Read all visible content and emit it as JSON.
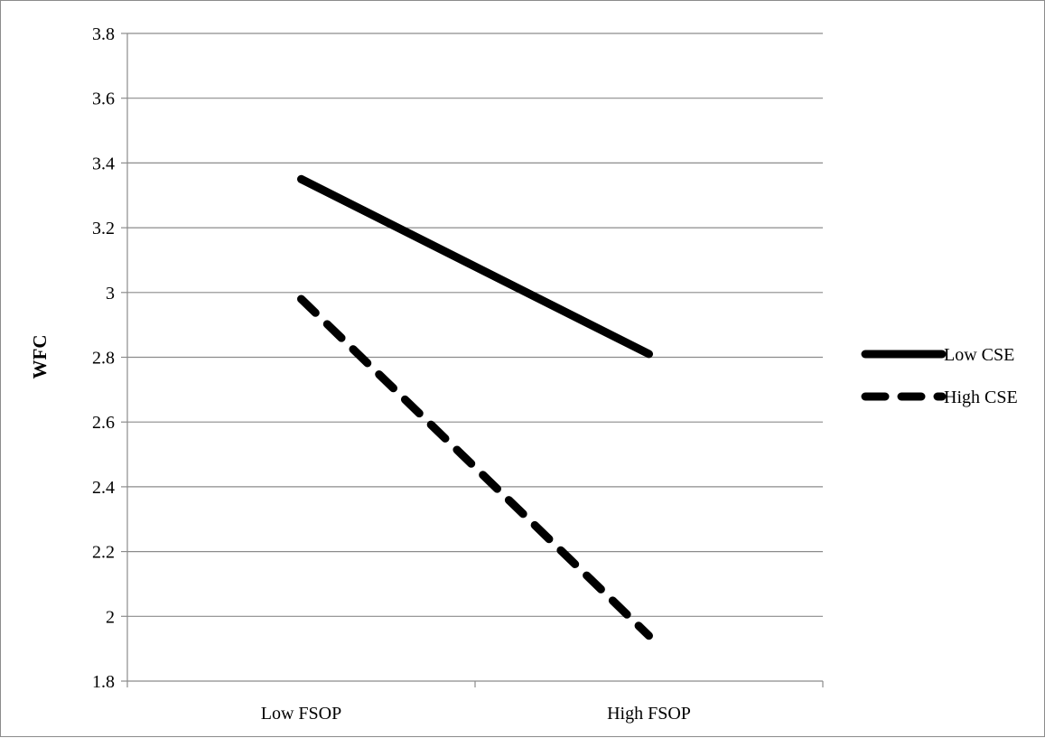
{
  "chart_data": {
    "type": "line",
    "title": "",
    "xlabel": "",
    "ylabel": "WFC",
    "categories": [
      "Low FSOP",
      "High FSOP"
    ],
    "ylim": [
      1.8,
      3.8
    ],
    "yticks": [
      "1.8",
      "2",
      "2.2",
      "2.4",
      "2.6",
      "2.8",
      "3",
      "3.2",
      "3.4",
      "3.6",
      "3.8"
    ],
    "grid": "horizontal",
    "legend_position": "right",
    "series": [
      {
        "name": "Low CSE",
        "values": [
          3.35,
          2.81
        ],
        "style": "solid",
        "color": "#000000"
      },
      {
        "name": "High CSE",
        "values": [
          2.98,
          1.94
        ],
        "style": "dashed",
        "color": "#000000"
      }
    ]
  }
}
